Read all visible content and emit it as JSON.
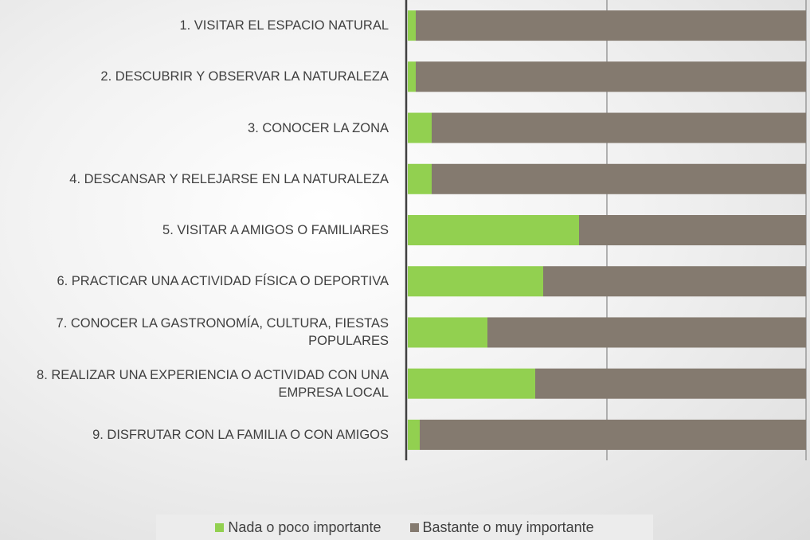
{
  "chart_data": {
    "type": "stacked_barh",
    "categories": [
      "1. VISITAR EL ESPACIO NATURAL",
      "2. DESCUBRIR Y OBSERVAR LA NATURALEZA",
      "3. CONOCER LA ZONA",
      "4. DESCANSAR Y RELEJARSE EN LA NATURALEZA",
      "5. VISITAR A AMIGOS O FAMILIARES",
      "6. PRACTICAR UNA ACTIVIDAD FÍSICA O DEPORTIVA",
      "7. CONOCER LA GASTRONOMÍA, CULTURA, FIESTAS POPULARES",
      "8. REALIZAR UNA EXPERIENCIA O ACTIVIDAD CON UNA EMPRESA LOCAL",
      "9. DISFRUTAR CON LA FAMILIA O CON AMIGOS"
    ],
    "series": [
      {
        "name": "Nada o poco importante",
        "color": "#92d050",
        "values": [
          2,
          2,
          6,
          6,
          43,
          34,
          20,
          32,
          3
        ]
      },
      {
        "name": "Bastante o muy importante",
        "color": "#847a6f",
        "values": [
          98,
          98,
          94,
          94,
          57,
          66,
          80,
          68,
          97
        ]
      }
    ],
    "xlim": [
      0,
      100
    ],
    "xticks": [
      0,
      50,
      100
    ],
    "grid": true
  }
}
